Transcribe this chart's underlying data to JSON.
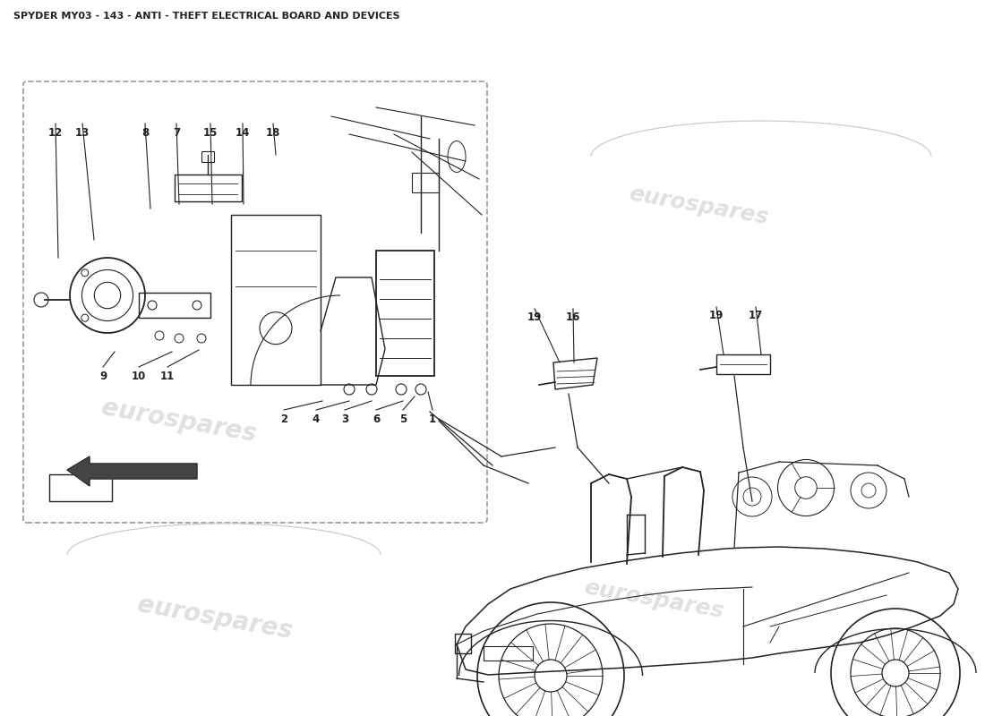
{
  "title": "SPYDER MY03 - 143 - ANTI - THEFT ELECTRICAL BOARD AND DEVICES",
  "title_fontsize": 8.5,
  "bg_color": "#ffffff",
  "watermark_text": "eurospares",
  "watermark_color": "#bbbbbb",
  "line_color": "#222222",
  "line_width": 1.0,
  "label_fontsize": 8.5,
  "fig_width": 11.0,
  "fig_height": 8.0,
  "dpi": 100
}
